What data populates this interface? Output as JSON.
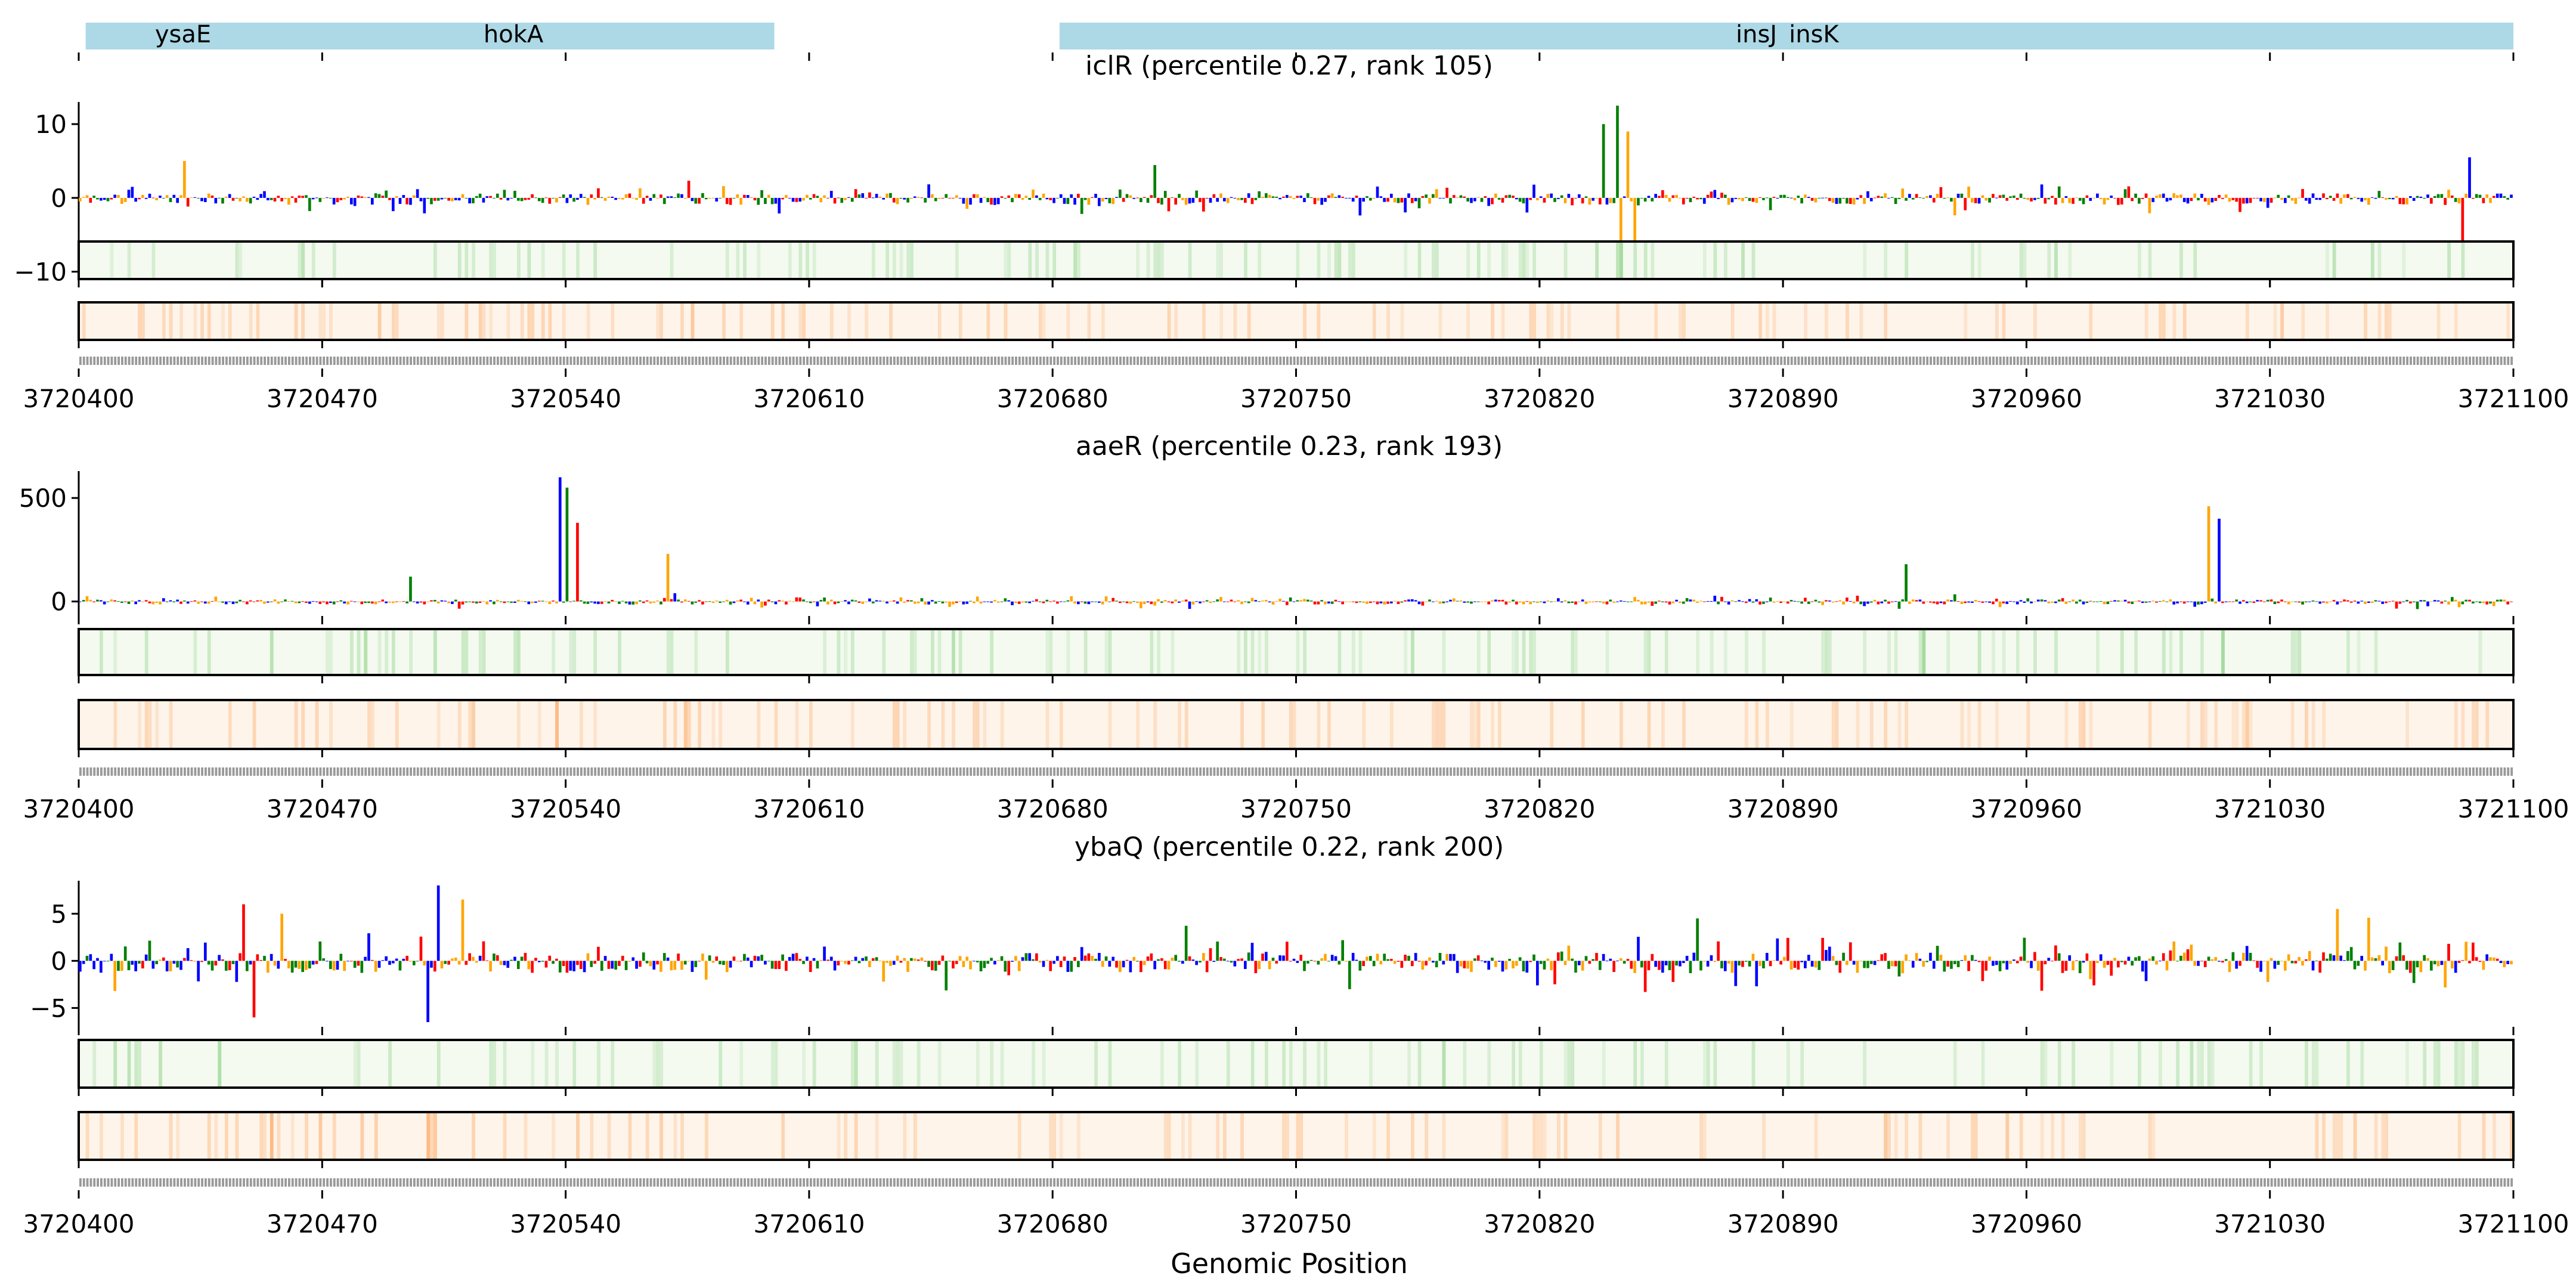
{
  "chart_data": {
    "type": "bar",
    "xlabel": "Genomic Position",
    "xlim": [
      3720400,
      3721100
    ],
    "xticks": [
      3720400,
      3720470,
      3720540,
      3720610,
      3720680,
      3720750,
      3720820,
      3720890,
      3720960,
      3721030,
      3721100
    ],
    "xtick_labels": [
      "3720400",
      "3720470",
      "3720540",
      "3720610",
      "3720680",
      "3720750",
      "3720820",
      "3720890",
      "3720960",
      "3721030",
      "3721100"
    ],
    "base_colors": {
      "A": "#008000",
      "C": "#0000ff",
      "G": "#ffa500",
      "T": "#ff0000"
    },
    "genes": [
      {
        "name": "ysaE",
        "label_pos": 3720430,
        "track": 0
      },
      {
        "name": "hokA",
        "label_pos": 3720525,
        "track": 0
      },
      {
        "name": "insJ",
        "label_pos": 3720889,
        "track": 1
      },
      {
        "name": "insK",
        "label_pos": 3720891,
        "track": 1
      }
    ],
    "gene_blocks": [
      {
        "start": 3720402,
        "end": 3720600
      },
      {
        "start": 3720682,
        "end": 3721100
      }
    ],
    "gene_color": "#add8e6",
    "panels": [
      {
        "title": "iclR (percentile 0.27, rank 105)",
        "ylim": [
          -11,
          13
        ],
        "yticks": [
          -10,
          0,
          10
        ],
        "ytick_labels": [
          "−10",
          "0",
          "10"
        ],
        "noise": 1.6,
        "peaks": [
          {
            "pos": 3720838,
            "value": 10
          },
          {
            "pos": 3720842,
            "value": 12.5
          },
          {
            "pos": 3720845,
            "value": 9
          },
          {
            "pos": 3720843,
            "value": -10
          },
          {
            "pos": 3720847,
            "value": -10.5
          },
          {
            "pos": 3720430,
            "value": 5
          },
          {
            "pos": 3721087,
            "value": 5.5
          },
          {
            "pos": 3721085,
            "value": -6
          }
        ],
        "heat_green_peaks": [
          3720843
        ],
        "heat_orange_peaks": []
      },
      {
        "title": "aaeR (percentile 0.23, rank 193)",
        "ylim": [
          -70,
          630
        ],
        "yticks": [
          0,
          500
        ],
        "ytick_labels": [
          "0",
          "500"
        ],
        "noise": 25,
        "peaks": [
          {
            "pos": 3720538,
            "value": 600
          },
          {
            "pos": 3720540,
            "value": 550
          },
          {
            "pos": 3720543,
            "value": 380
          },
          {
            "pos": 3720569,
            "value": 230
          },
          {
            "pos": 3720925,
            "value": 180
          },
          {
            "pos": 3721012,
            "value": 460
          },
          {
            "pos": 3721015,
            "value": 400
          },
          {
            "pos": 3720495,
            "value": 120
          }
        ],
        "heat_green_peaks": [
          3721016,
          3720930
        ],
        "heat_orange_peaks": [
          3720537
        ]
      },
      {
        "title": "ybaQ (percentile 0.22, rank 200)",
        "ylim": [
          -7,
          8.5
        ],
        "yticks": [
          -5,
          0,
          5
        ],
        "ytick_labels": [
          "−5",
          "0",
          "5"
        ],
        "noise": 2.2,
        "peaks": [
          {
            "pos": 3720447,
            "value": 6
          },
          {
            "pos": 3720458,
            "value": 5
          },
          {
            "pos": 3720503,
            "value": 8
          },
          {
            "pos": 3720510,
            "value": 6.5
          },
          {
            "pos": 3721049,
            "value": 5.5
          },
          {
            "pos": 3720865,
            "value": 4.5
          },
          {
            "pos": 3720450,
            "value": -6
          },
          {
            "pos": 3720500,
            "value": -6.5
          }
        ],
        "heat_green_peaks": [],
        "heat_orange_peaks": [
          3720455,
          3720500
        ]
      }
    ]
  }
}
